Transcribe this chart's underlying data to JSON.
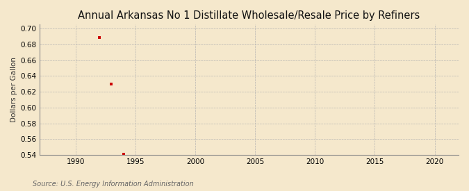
{
  "title": "Annual Arkansas No 1 Distillate Wholesale/Resale Price by Refiners",
  "ylabel": "Dollars per Gallon",
  "source": "Source: U.S. Energy Information Administration",
  "x_data": [
    1992,
    1993,
    1994
  ],
  "y_data": [
    0.689,
    0.63,
    0.541
  ],
  "marker_color": "#cc0000",
  "marker": "s",
  "marker_size": 3.5,
  "xlim": [
    1987,
    2022
  ],
  "ylim": [
    0.54,
    0.705
  ],
  "xticks": [
    1990,
    1995,
    2000,
    2005,
    2010,
    2015,
    2020
  ],
  "yticks": [
    0.54,
    0.56,
    0.58,
    0.6,
    0.62,
    0.64,
    0.66,
    0.68,
    0.7
  ],
  "background_color": "#f5e8cc",
  "grid_color": "#b0b0b0",
  "title_fontsize": 10.5,
  "label_fontsize": 7.5,
  "tick_fontsize": 7.5,
  "source_fontsize": 7
}
